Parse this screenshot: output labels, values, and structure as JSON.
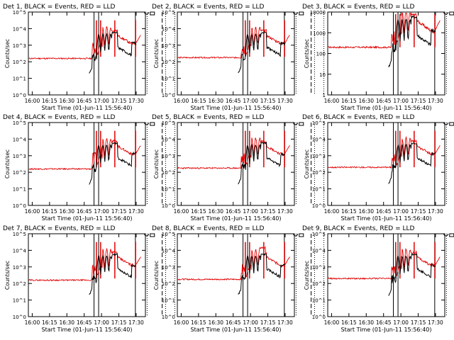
{
  "colors": {
    "events": "#000000",
    "lld": "#e00000",
    "axis": "#000000",
    "background": "#ffffff"
  },
  "ylabel": "Counts/sec",
  "xlabel": "Start Time (01-Jun-11 15:56:40)",
  "x_tick_labels": [
    "16:00",
    "16:15",
    "16:30",
    "16:45",
    "17:00",
    "17:15",
    "17:30"
  ],
  "chart_data": [
    {
      "type": "line",
      "title": "Det 1, BLACK = Events, RED = LLD",
      "yscale": "log",
      "xlim": [
        "15:56:40",
        "17:38:00"
      ],
      "ylim": [
        1,
        100000
      ],
      "y_tick_labels": [
        "10^0",
        "10^1",
        "10^2",
        "10^3",
        "10^4",
        "10^5"
      ],
      "series": [
        {
          "name": "Events",
          "color": "#000000"
        },
        {
          "name": "LLD",
          "color": "#e00000"
        }
      ]
    },
    {
      "type": "line",
      "title": "Det 2, BLACK = Events, RED = LLD",
      "yscale": "log",
      "xlim": [
        "15:56:40",
        "17:38:00"
      ],
      "ylim": [
        1,
        100000
      ],
      "y_tick_labels": [
        "10^0",
        "10^1",
        "10^2",
        "10^3",
        "10^4",
        "10^5"
      ],
      "series": [
        {
          "name": "Events",
          "color": "#000000"
        },
        {
          "name": "LLD",
          "color": "#e00000"
        }
      ]
    },
    {
      "type": "line",
      "title": "Det 3, BLACK = Events, RED = LLD",
      "yscale": "log",
      "xlim": [
        "15:56:40",
        "17:38:00"
      ],
      "ylim": [
        1,
        10000
      ],
      "y_tick_labels": [
        "1",
        "10",
        "100",
        "1000",
        "10000"
      ],
      "series": [
        {
          "name": "Events",
          "color": "#000000"
        },
        {
          "name": "LLD",
          "color": "#e00000"
        }
      ]
    },
    {
      "type": "line",
      "title": "Det 4, BLACK = Events, RED = LLD",
      "yscale": "log",
      "xlim": [
        "15:56:40",
        "17:38:00"
      ],
      "ylim": [
        1,
        100000
      ],
      "y_tick_labels": [
        "10^0",
        "10^1",
        "10^2",
        "10^3",
        "10^4",
        "10^5"
      ],
      "series": [
        {
          "name": "Events",
          "color": "#000000"
        },
        {
          "name": "LLD",
          "color": "#e00000"
        }
      ]
    },
    {
      "type": "line",
      "title": "Det 5, BLACK = Events, RED = LLD",
      "yscale": "log",
      "xlim": [
        "15:56:40",
        "17:38:00"
      ],
      "ylim": [
        1,
        100000
      ],
      "y_tick_labels": [
        "10^0",
        "10^1",
        "10^2",
        "10^3",
        "10^4",
        "10^5"
      ],
      "series": [
        {
          "name": "Events",
          "color": "#000000"
        },
        {
          "name": "LLD",
          "color": "#e00000"
        }
      ]
    },
    {
      "type": "line",
      "title": "Det 6, BLACK = Events, RED = LLD",
      "yscale": "log",
      "xlim": [
        "15:56:40",
        "17:38:00"
      ],
      "ylim": [
        1,
        100000
      ],
      "y_tick_labels": [
        "10^0",
        "10^1",
        "10^2",
        "10^3",
        "10^4",
        "10^5"
      ],
      "series": [
        {
          "name": "Events",
          "color": "#000000"
        },
        {
          "name": "LLD",
          "color": "#e00000"
        }
      ]
    },
    {
      "type": "line",
      "title": "Det 7, BLACK = Events, RED = LLD",
      "yscale": "log",
      "xlim": [
        "15:56:40",
        "17:38:00"
      ],
      "ylim": [
        1,
        100000
      ],
      "y_tick_labels": [
        "10^0",
        "10^1",
        "10^2",
        "10^3",
        "10^4",
        "10^5"
      ],
      "series": [
        {
          "name": "Events",
          "color": "#000000"
        },
        {
          "name": "LLD",
          "color": "#e00000"
        }
      ]
    },
    {
      "type": "line",
      "title": "Det 8, BLACK = Events, RED = LLD",
      "yscale": "log",
      "xlim": [
        "15:56:40",
        "17:38:00"
      ],
      "ylim": [
        1,
        100000
      ],
      "y_tick_labels": [
        "10^0",
        "10^1",
        "10^2",
        "10^3",
        "10^4",
        "10^5"
      ],
      "series": [
        {
          "name": "Events",
          "color": "#000000"
        },
        {
          "name": "LLD",
          "color": "#e00000"
        }
      ]
    },
    {
      "type": "line",
      "title": "Det 9, BLACK = Events, RED = LLD",
      "yscale": "log",
      "xlim": [
        "15:56:40",
        "17:38:00"
      ],
      "ylim": [
        1,
        100000
      ],
      "y_tick_labels": [
        "10^0",
        "10^1",
        "10^2",
        "10^3",
        "10^4",
        "10^5"
      ],
      "series": [
        {
          "name": "Events",
          "color": "#000000"
        },
        {
          "name": "LLD",
          "color": "#e00000"
        }
      ]
    }
  ]
}
